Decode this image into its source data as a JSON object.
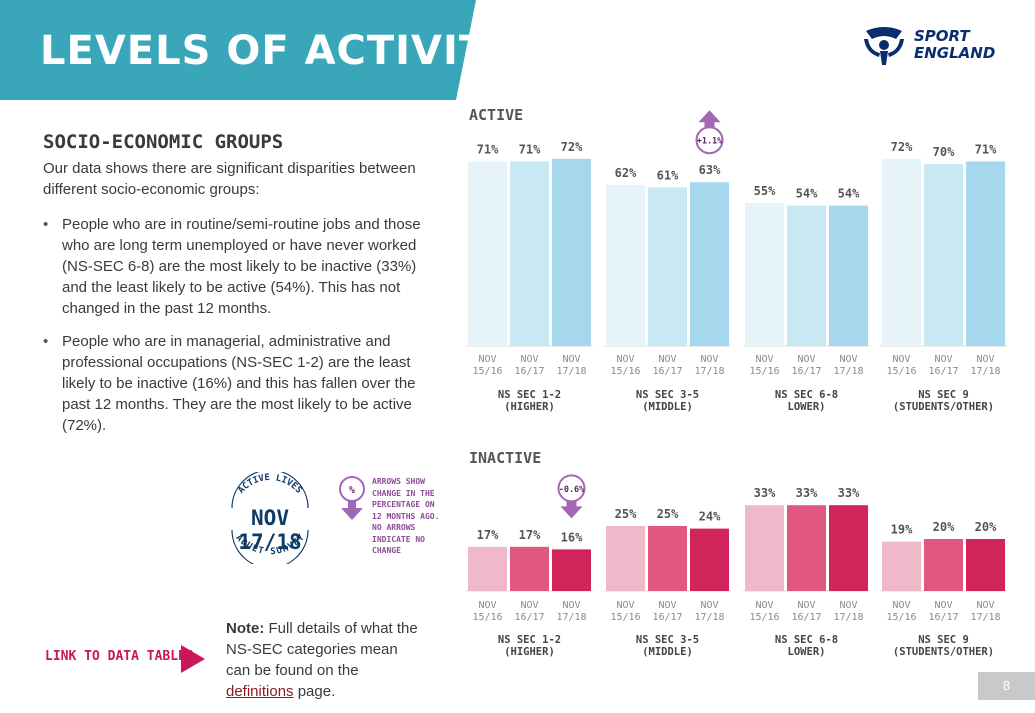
{
  "header": {
    "title": "LEVELS OF ACTIVITY",
    "logo_line1": "SPORT",
    "logo_line2": "ENGLAND",
    "banner_color": "#3aa6b9"
  },
  "content": {
    "heading": "SOCIO-ECONOMIC GROUPS",
    "intro": "Our data shows there are significant disparities between different socio-economic groups:",
    "bullets": [
      "People who are in routine/semi-routine jobs and those who are long term unemployed or have never worked (NS-SEC 6-8) are the most likely to be inactive (33%) and the least likely to be active (54%). This has not changed in the past 12 months.",
      "People who are in managerial, administrative and professional occupations (NS-SEC 1-2) are the least likely to be inactive (16%) and this has fallen over the past 12 months. They are the most likely to be active (72%)."
    ]
  },
  "badge": {
    "top": "ACTIVE LIVES",
    "main": "NOV 17/18",
    "bottom": "ADULT SURVEY"
  },
  "legend": {
    "symbol": "%",
    "note": "ARROWS SHOW CHANGE IN THE PERCENTAGE ON 12 MONTHS AGO. NO ARROWS INDICATE NO CHANGE"
  },
  "link": {
    "label": "LINK TO DATA TABLES"
  },
  "note": {
    "bold": "Note:",
    "text_before": " Full details of what the NS-SEC categories mean can be found on the ",
    "link": "definitions",
    "text_after": " page."
  },
  "page_number": "8",
  "chart_data": [
    {
      "type": "bar",
      "title": "ACTIVE",
      "x": [
        "NOV 15/16",
        "NOV 16/17",
        "NOV 17/18"
      ],
      "groups": [
        {
          "label": [
            "NS SEC 1-2",
            "(HIGHER)"
          ],
          "values": [
            71,
            71,
            72
          ],
          "labels": [
            "71%",
            "71%",
            "72%"
          ]
        },
        {
          "label": [
            "NS SEC 3-5",
            "(MIDDLE)"
          ],
          "values": [
            62,
            61,
            63
          ],
          "labels": [
            "62%",
            "61%",
            "63%"
          ],
          "change": {
            "text": "+1.1%",
            "direction": "up"
          }
        },
        {
          "label": [
            "NS SEC 6-8",
            "LOWER)"
          ],
          "values": [
            55,
            54,
            54
          ],
          "labels": [
            "55%",
            "54%",
            "54%"
          ]
        },
        {
          "label": [
            "NS SEC 9",
            "(STUDENTS/OTHER)"
          ],
          "values": [
            72,
            70,
            71
          ],
          "labels": [
            "72%",
            "70%",
            "71%"
          ]
        }
      ],
      "colors": [
        "#e6f4fa",
        "#c8e8f3",
        "#a5d8ec"
      ],
      "ylim": [
        0,
        100
      ]
    },
    {
      "type": "bar",
      "title": "INACTIVE",
      "x": [
        "NOV 15/16",
        "NOV 16/17",
        "NOV 17/18"
      ],
      "groups": [
        {
          "label": [
            "NS SEC 1-2",
            "(HIGHER)"
          ],
          "values": [
            17,
            17,
            16
          ],
          "labels": [
            "17%",
            "17%",
            "16%"
          ],
          "change": {
            "text": "-0.6%",
            "direction": "down"
          }
        },
        {
          "label": [
            "NS SEC 3-5",
            "(MIDDLE)"
          ],
          "values": [
            25,
            25,
            24
          ],
          "labels": [
            "25%",
            "25%",
            "24%"
          ]
        },
        {
          "label": [
            "NS SEC 6-8",
            "LOWER)"
          ],
          "values": [
            33,
            33,
            33
          ],
          "labels": [
            "33%",
            "33%",
            "33%"
          ]
        },
        {
          "label": [
            "NS SEC 9",
            "(STUDENTS/OTHER)"
          ],
          "values": [
            19,
            20,
            20
          ],
          "labels": [
            "19%",
            "20%",
            "20%"
          ]
        }
      ],
      "colors": [
        "#f0b9c9",
        "#e0587f",
        "#d0245a"
      ],
      "ylim": [
        0,
        100
      ]
    }
  ]
}
